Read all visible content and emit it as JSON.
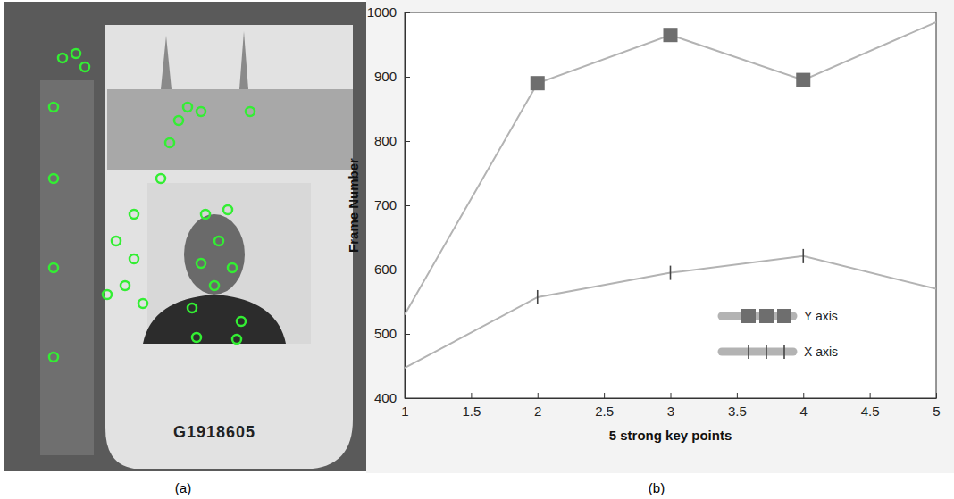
{
  "figure": {
    "panel_a": {
      "label": "(a)",
      "card_number": "G1918605"
    },
    "panel_b": {
      "label": "(b)"
    }
  },
  "chart_data": {
    "type": "line",
    "x": [
      1,
      2,
      3,
      4,
      5
    ],
    "series": [
      {
        "name": "Y axis",
        "color": "#b3b3b3",
        "marker": "square",
        "values": [
          530,
          890,
          965,
          895,
          985
        ]
      },
      {
        "name": "X axis",
        "color": "#b3b3b3",
        "marker": "vline",
        "values": [
          447,
          557,
          595,
          621,
          570
        ]
      }
    ],
    "x_label": "5 strong key points",
    "y_label": "Frame Number",
    "xlim": [
      1,
      5
    ],
    "xticks": [
      1,
      1.5,
      2,
      2.5,
      3,
      3.5,
      4,
      4.5,
      5
    ],
    "ylim": [
      400,
      1000
    ],
    "yticks": [
      400,
      500,
      600,
      700,
      800,
      900,
      1000
    ],
    "grid": false,
    "legend": "lower right"
  }
}
